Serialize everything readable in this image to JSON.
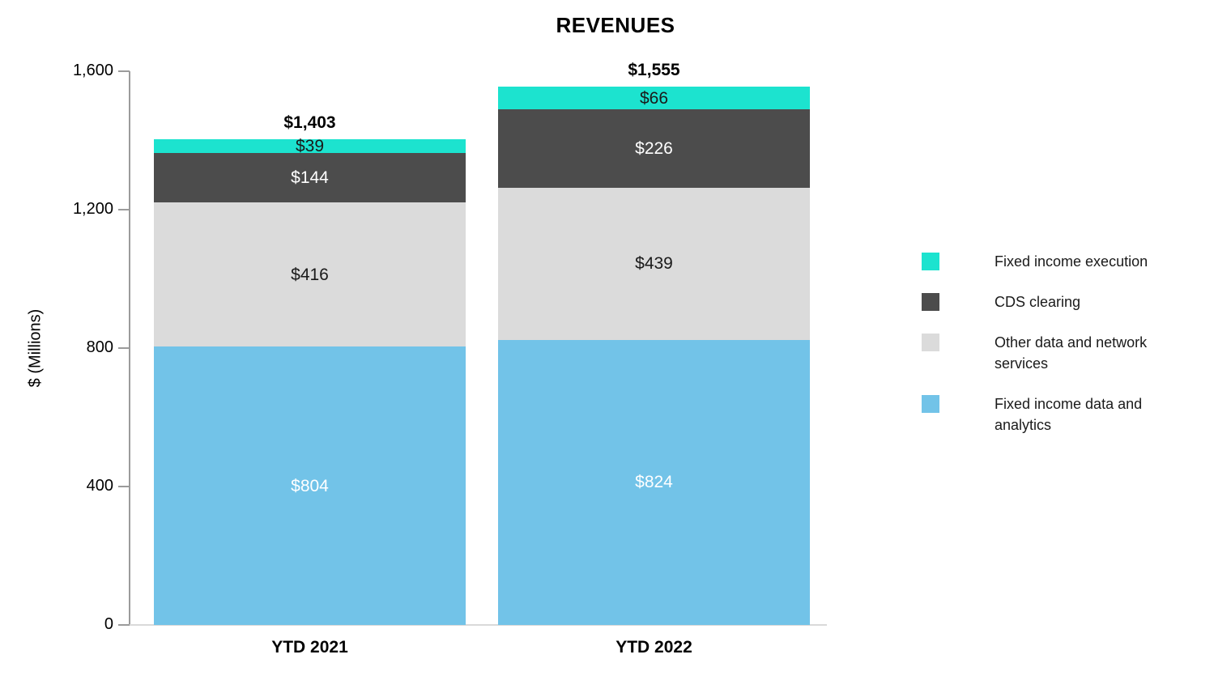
{
  "chart_data": {
    "type": "bar",
    "stacked": true,
    "title": "REVENUES",
    "ylabel": "$ (Millions)",
    "ylim": [
      0,
      1600
    ],
    "yticks": [
      0,
      400,
      800,
      1200,
      1600
    ],
    "ytick_labels": [
      "0",
      "400",
      "800",
      "1,200",
      "1,600"
    ],
    "categories": [
      "YTD 2021",
      "YTD 2022"
    ],
    "totals": [
      "$1,403",
      "$1,555"
    ],
    "total_values": [
      1403,
      1555
    ],
    "series": [
      {
        "name": "Fixed income data and analytics",
        "color": "#72C3E8",
        "values": [
          804,
          824
        ],
        "labels": [
          "$804",
          "$824"
        ],
        "label_color": "#FFFFFF"
      },
      {
        "name": "Other data and network services",
        "color": "#DBDBDB",
        "values": [
          416,
          439
        ],
        "labels": [
          "$416",
          "$439"
        ],
        "label_color": "#1A1A1A"
      },
      {
        "name": "CDS clearing",
        "color": "#4C4C4C",
        "values": [
          144,
          226
        ],
        "labels": [
          "$144",
          "$226"
        ],
        "label_color": "#FFFFFF"
      },
      {
        "name": "Fixed income execution",
        "color": "#1CE3CF",
        "values": [
          39,
          66
        ],
        "labels": [
          "$39",
          "$66"
        ],
        "label_color": "#1A1A1A"
      }
    ],
    "legend": [
      {
        "label": "Fixed income execution",
        "color": "#1CE3CF"
      },
      {
        "label": "CDS clearing",
        "color": "#4C4C4C"
      },
      {
        "label": "Other data and network services",
        "color": "#DBDBDB"
      },
      {
        "label": "Fixed income data and analytics",
        "color": "#72C3E8"
      }
    ],
    "legend_position": "right",
    "grid": false
  }
}
